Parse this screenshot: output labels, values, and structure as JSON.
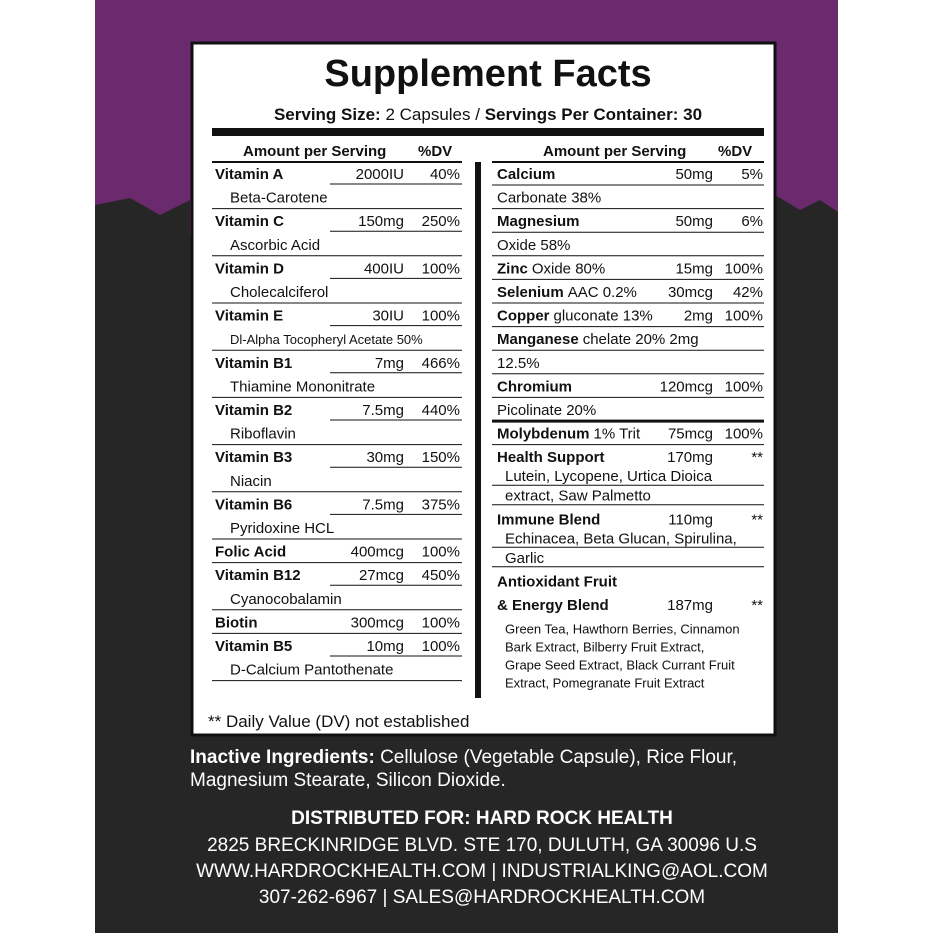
{
  "title": "Supplement Facts",
  "serving": {
    "size_label": "Serving Size:",
    "size": "2 Capsules",
    "sep": "/",
    "per_label": "Servings Per Container:",
    "per": "30"
  },
  "header": {
    "amount": "Amount per Serving",
    "dv": "%DV"
  },
  "left": [
    {
      "name": "Vitamin A",
      "amount": "2000IU",
      "dv": "40%",
      "detail": "Beta-Carotene"
    },
    {
      "name": "Vitamin C",
      "amount": "150mg",
      "dv": "250%",
      "detail": "Ascorbic Acid"
    },
    {
      "name": "Vitamin D",
      "amount": "400IU",
      "dv": "100%",
      "detail": "Cholecalciferol"
    },
    {
      "name": "Vitamin E",
      "amount": "30IU",
      "dv": "100%",
      "detail": "Dl-Alpha Tocopheryl Acetate 50%"
    },
    {
      "name": "Vitamin B1",
      "amount": "7mg",
      "dv": "466%",
      "detail": "Thiamine Mononitrate"
    },
    {
      "name": "Vitamin B2",
      "amount": "7.5mg",
      "dv": "440%",
      "detail": "Riboflavin"
    },
    {
      "name": "Vitamin B3",
      "amount": "30mg",
      "dv": "150%",
      "detail": "Niacin"
    },
    {
      "name": "Vitamin B6",
      "amount": "7.5mg",
      "dv": "375%",
      "detail": "Pyridoxine HCL"
    },
    {
      "name": "Folic Acid",
      "amount": "400mcg",
      "dv": "100%"
    },
    {
      "name": "Vitamin B12",
      "amount": "27mcg",
      "dv": "450%",
      "detail": "Cyanocobalamin"
    },
    {
      "name": "Biotin",
      "amount": "300mcg",
      "dv": "100%"
    },
    {
      "name": "Vitamin B5",
      "amount": "10mg",
      "dv": "100%",
      "detail": "D-Calcium Pantothenate"
    }
  ],
  "right": [
    {
      "name": "Calcium",
      "amount": "50mg",
      "dv": "5%",
      "details": [
        "Carbonate 38%"
      ]
    },
    {
      "name": "Magnesium",
      "amount": "50mg",
      "dv": "6%",
      "details": [
        "Oxide 58%"
      ]
    },
    {
      "name": "Zinc",
      "note": "Oxide 80%",
      "amount": "15mg",
      "dv": "100%"
    },
    {
      "name": "Selenium",
      "note": "AAC 0.2%",
      "amount": "30mcg",
      "dv": "42%"
    },
    {
      "name": "Copper",
      "note": "gluconate 13%",
      "amount": "2mg",
      "dv": "100%"
    },
    {
      "name": "Manganese",
      "note": "chelate 20% 2mg",
      "details": [
        "12.5%"
      ]
    },
    {
      "name": "Chromium",
      "amount": "120mcg",
      "dv": "100%",
      "details": [
        "Picolinate 20%"
      ]
    },
    {
      "name": "Molybdenum",
      "note": "1% Trit",
      "amount": "75mcg",
      "dv": "100%"
    },
    {
      "name": "Health Support",
      "amount": "170mg",
      "dv": "**",
      "details": [
        "Lutein, Lycopene, Urtica Dioica",
        "extract, Saw Palmetto"
      ]
    },
    {
      "name": "Immune Blend",
      "amount": "110mg",
      "dv": "**",
      "details": [
        "Echinacea, Beta Glucan, Spirulina,",
        "Garlic"
      ]
    },
    {
      "name": "Antioxidant Fruit"
    },
    {
      "name": "& Energy Blend",
      "amount": "187mg",
      "dv": "**",
      "details": [
        "Green Tea, Hawthorn Berries, Cinnamon",
        "Bark Extract, Bilberry Fruit Extract,",
        "Grape Seed Extract, Black Currant Fruit",
        "Extract, Pomegranate Fruit Extract"
      ]
    }
  ],
  "footnote": "** Daily Value (DV) not established",
  "inactive": {
    "label": "Inactive Ingredients:",
    "line1": "Cellulose (Vegetable Capsule), Rice Flour,",
    "line2": "Magnesium Stearate, Silicon Dioxide."
  },
  "distributor": {
    "title": "DISTRIBUTED FOR: HARD ROCK HEALTH",
    "address": "2825 BRECKINRIDGE BLVD. STE 170, DULUTH, GA 30096 U.S",
    "web": "WWW.HARDROCKHEALTH.COM | INDUSTRIALKING@AOL.COM",
    "phone": "307-262-6967 | SALES@HARDROCKHEALTH.COM"
  }
}
